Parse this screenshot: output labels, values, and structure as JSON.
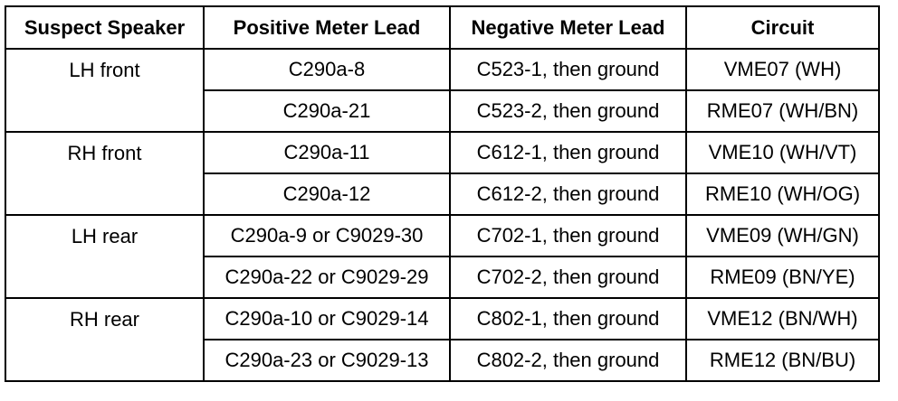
{
  "headers": [
    "Suspect Speaker",
    "Positive Meter Lead",
    "Negative Meter Lead",
    "Circuit"
  ],
  "rows": [
    [
      "LH front",
      "C290a-8",
      "C523-1, then ground",
      "VME07 (WH)"
    ],
    [
      "",
      "C290a-21",
      "C523-2, then ground",
      "RME07 (WH/BN)"
    ],
    [
      "RH front",
      "C290a-11",
      "C612-1, then ground",
      "VME10 (WH/VT)"
    ],
    [
      "",
      "C290a-12",
      "C612-2, then ground",
      "RME10 (WH/OG)"
    ],
    [
      "LH rear",
      "C290a-9 or C9029-30",
      "C702-1, then ground",
      "VME09 (WH/GN)"
    ],
    [
      "",
      "C290a-22 or C9029-29",
      "C702-2, then ground",
      "RME09 (BN/YE)"
    ],
    [
      "RH rear",
      "C290a-10 or C9029-14",
      "C802-1, then ground",
      "VME12 (BN/WH)"
    ],
    [
      "",
      "C290a-23 or C9029-13",
      "C802-2, then ground",
      "RME12 (BN/BU)"
    ]
  ]
}
